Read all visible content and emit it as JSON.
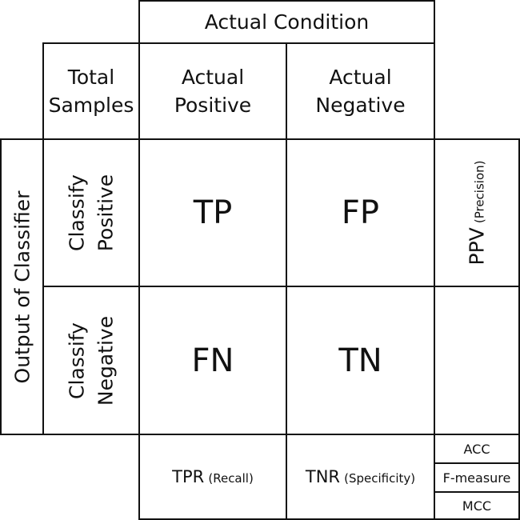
{
  "header": {
    "actual_condition": "Actual Condition",
    "total_samples": [
      "Total",
      "Samples"
    ],
    "actual_positive": [
      "Actual",
      "Positive"
    ],
    "actual_negative": [
      "Actual",
      "Negative"
    ]
  },
  "side": {
    "output_of_classifier": "Output of Classifier",
    "classify_positive": [
      "Classify",
      "Positive"
    ],
    "classify_negative": [
      "Classify",
      "Negative"
    ]
  },
  "cells": {
    "tp": "TP",
    "fp": "FP",
    "fn": "FN",
    "tn": "TN"
  },
  "metrics": {
    "ppv": "PPV",
    "ppv_note": "(Precision)",
    "tpr": "TPR",
    "tpr_note": "(Recall)",
    "tnr": "TNR",
    "tnr_note": "(Specificity)",
    "acc": "ACC",
    "f_measure": "F-measure",
    "mcc": "MCC"
  }
}
